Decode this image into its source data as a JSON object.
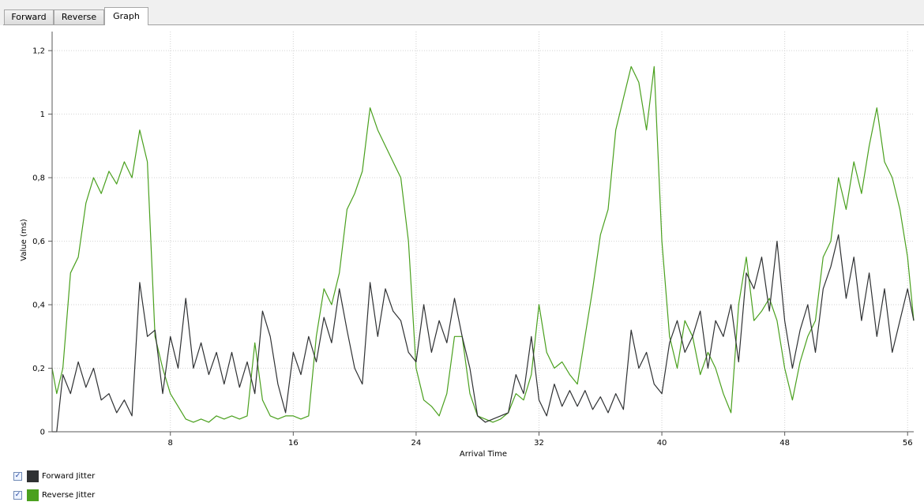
{
  "tabs": [
    {
      "label": "Forward",
      "active": false
    },
    {
      "label": "Reverse",
      "active": false
    },
    {
      "label": "Graph",
      "active": true
    }
  ],
  "legend": [
    {
      "label": "Forward Jitter",
      "checked": true,
      "color": "#2f3133"
    },
    {
      "label": "Reverse Jitter",
      "checked": true,
      "color": "#4aa01e"
    }
  ],
  "chart_data": {
    "type": "line",
    "title": "",
    "xlabel": "Arrival Time",
    "ylabel": "Value (ms)",
    "xlim": [
      0.3,
      56.4
    ],
    "ylim": [
      0,
      1.26
    ],
    "x_ticks": [
      8,
      16,
      24,
      32,
      40,
      48,
      56
    ],
    "y_ticks": [
      0,
      0.2,
      0.4,
      0.6,
      0.8,
      1,
      1.2
    ],
    "y_tick_labels": [
      "0",
      "0,2",
      "0,4",
      "0,6",
      "0,8",
      "1",
      "1,2"
    ],
    "grid": true,
    "series": [
      {
        "name": "Forward Jitter",
        "color": "#2f3133",
        "x": [
          0.3,
          0.6,
          1,
          1.5,
          2,
          2.5,
          3,
          3.5,
          4,
          4.5,
          5,
          5.5,
          6,
          6.5,
          7,
          7.5,
          8,
          8.5,
          9,
          9.5,
          10,
          10.5,
          11,
          11.5,
          12,
          12.5,
          13,
          13.5,
          14,
          14.5,
          15,
          15.5,
          16,
          16.5,
          17,
          17.5,
          18,
          18.5,
          19,
          19.5,
          20,
          20.5,
          21,
          21.5,
          22,
          22.5,
          23,
          23.5,
          24,
          24.5,
          25,
          25.5,
          26,
          26.5,
          27,
          27.5,
          28,
          28.5,
          29,
          29.5,
          30,
          30.5,
          31,
          31.5,
          32,
          32.5,
          33,
          33.5,
          34,
          34.5,
          35,
          35.5,
          36,
          36.5,
          37,
          37.5,
          38,
          38.5,
          39,
          39.5,
          40,
          40.5,
          41,
          41.5,
          42,
          42.5,
          43,
          43.5,
          44,
          44.5,
          45,
          45.5,
          46,
          46.5,
          47,
          47.5,
          48,
          48.5,
          49,
          49.5,
          50,
          50.5,
          51,
          51.5,
          52,
          52.5,
          53,
          53.5,
          54,
          54.5,
          55,
          55.5,
          56,
          56.4
        ],
        "y": [
          0,
          0,
          0.18,
          0.12,
          0.22,
          0.14,
          0.2,
          0.1,
          0.12,
          0.06,
          0.1,
          0.05,
          0.47,
          0.3,
          0.32,
          0.12,
          0.3,
          0.2,
          0.42,
          0.2,
          0.28,
          0.18,
          0.25,
          0.15,
          0.25,
          0.14,
          0.22,
          0.12,
          0.38,
          0.3,
          0.15,
          0.06,
          0.25,
          0.18,
          0.3,
          0.22,
          0.36,
          0.28,
          0.45,
          0.32,
          0.2,
          0.15,
          0.47,
          0.3,
          0.45,
          0.38,
          0.35,
          0.25,
          0.22,
          0.4,
          0.25,
          0.35,
          0.28,
          0.42,
          0.3,
          0.2,
          0.05,
          0.03,
          0.04,
          0.05,
          0.06,
          0.18,
          0.12,
          0.3,
          0.1,
          0.05,
          0.15,
          0.08,
          0.13,
          0.08,
          0.13,
          0.07,
          0.11,
          0.06,
          0.12,
          0.07,
          0.32,
          0.2,
          0.25,
          0.15,
          0.12,
          0.28,
          0.35,
          0.25,
          0.3,
          0.38,
          0.2,
          0.35,
          0.3,
          0.4,
          0.22,
          0.5,
          0.45,
          0.55,
          0.38,
          0.6,
          0.35,
          0.2,
          0.32,
          0.4,
          0.25,
          0.45,
          0.52,
          0.62,
          0.42,
          0.55,
          0.35,
          0.5,
          0.3,
          0.45,
          0.25,
          0.35,
          0.45,
          0.35
        ]
      },
      {
        "name": "Reverse Jitter",
        "color": "#4aa01e",
        "x": [
          0.3,
          0.6,
          1,
          1.5,
          2,
          2.5,
          3,
          3.5,
          4,
          4.5,
          5,
          5.5,
          6,
          6.5,
          7,
          7.5,
          8,
          8.5,
          9,
          9.5,
          10,
          10.5,
          11,
          11.5,
          12,
          12.5,
          13,
          13.5,
          14,
          14.5,
          15,
          15.5,
          16,
          16.5,
          17,
          17.5,
          18,
          18.5,
          19,
          19.5,
          20,
          20.5,
          21,
          21.5,
          22,
          22.5,
          23,
          23.5,
          24,
          24.5,
          25,
          25.5,
          26,
          26.5,
          27,
          27.5,
          28,
          28.5,
          29,
          29.5,
          30,
          30.5,
          31,
          31.5,
          32,
          32.5,
          33,
          33.5,
          34,
          34.5,
          35,
          35.5,
          36,
          36.5,
          37,
          37.5,
          38,
          38.5,
          39,
          39.5,
          40,
          40.5,
          41,
          41.5,
          42,
          42.5,
          43,
          43.5,
          44,
          44.5,
          45,
          45.5,
          46,
          46.5,
          47,
          47.5,
          48,
          48.5,
          49,
          49.5,
          50,
          50.5,
          51,
          51.5,
          52,
          52.5,
          53,
          53.5,
          54,
          54.5,
          55,
          55.5,
          56,
          56.4
        ],
        "y": [
          0.2,
          0.12,
          0.2,
          0.5,
          0.55,
          0.72,
          0.8,
          0.75,
          0.82,
          0.78,
          0.85,
          0.8,
          0.95,
          0.85,
          0.3,
          0.2,
          0.12,
          0.08,
          0.04,
          0.03,
          0.04,
          0.03,
          0.05,
          0.04,
          0.05,
          0.04,
          0.05,
          0.28,
          0.1,
          0.05,
          0.04,
          0.05,
          0.05,
          0.04,
          0.05,
          0.3,
          0.45,
          0.4,
          0.5,
          0.7,
          0.75,
          0.82,
          1.02,
          0.95,
          0.9,
          0.85,
          0.8,
          0.6,
          0.2,
          0.1,
          0.08,
          0.05,
          0.12,
          0.3,
          0.3,
          0.12,
          0.05,
          0.04,
          0.03,
          0.04,
          0.06,
          0.12,
          0.1,
          0.18,
          0.4,
          0.25,
          0.2,
          0.22,
          0.18,
          0.15,
          0.3,
          0.45,
          0.62,
          0.7,
          0.95,
          1.05,
          1.15,
          1.1,
          0.95,
          1.15,
          0.6,
          0.3,
          0.2,
          0.35,
          0.3,
          0.18,
          0.25,
          0.2,
          0.12,
          0.06,
          0.4,
          0.55,
          0.35,
          0.38,
          0.42,
          0.35,
          0.2,
          0.1,
          0.22,
          0.3,
          0.35,
          0.55,
          0.6,
          0.8,
          0.7,
          0.85,
          0.75,
          0.9,
          1.02,
          0.85,
          0.8,
          0.7,
          0.55,
          0.35
        ]
      }
    ]
  }
}
